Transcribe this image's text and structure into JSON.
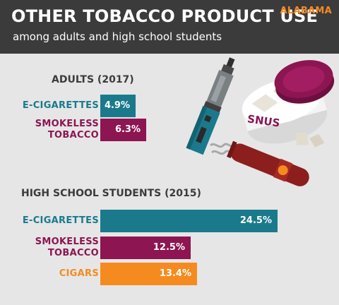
{
  "header": {
    "title": "OTHER TOBACCO PRODUCT USE",
    "subtitle": "among adults and high school students",
    "state": "ALABAMA"
  },
  "illustration": {
    "tin_label": "SNUS",
    "icons": [
      "vape-pen-icon",
      "snus-tin-icon",
      "cigar-icon"
    ]
  },
  "colors": {
    "header_bg": "#3b3b3b",
    "background": "#e6e6e6",
    "e_cigarettes": "#1a7a8c",
    "smokeless_tobacco": "#8c1552",
    "cigars": "#f58b1f",
    "state": "#f58b1f"
  },
  "chart_data": [
    {
      "type": "bar",
      "orientation": "horizontal",
      "title": "ADULTS (2017)",
      "categories": [
        {
          "lines": [
            "E-CIGARETTES"
          ]
        },
        {
          "lines": [
            "SMOKELESS",
            "TOBACCO"
          ]
        }
      ],
      "values": [
        4.9,
        6.3
      ],
      "value_labels": [
        "4.9%",
        "6.3%"
      ],
      "colors": [
        "#1a7a8c",
        "#8c1552"
      ],
      "unit": "%"
    },
    {
      "type": "bar",
      "orientation": "horizontal",
      "title": "HIGH SCHOOL STUDENTS (2015)",
      "categories": [
        {
          "lines": [
            "E-CIGARETTES"
          ]
        },
        {
          "lines": [
            "SMOKELESS",
            "TOBACCO"
          ]
        },
        {
          "lines": [
            "CIGARS"
          ]
        }
      ],
      "values": [
        24.5,
        12.5,
        13.4
      ],
      "value_labels": [
        "24.5%",
        "12.5%",
        "13.4%"
      ],
      "colors": [
        "#1a7a8c",
        "#8c1552",
        "#f58b1f"
      ],
      "unit": "%"
    }
  ]
}
